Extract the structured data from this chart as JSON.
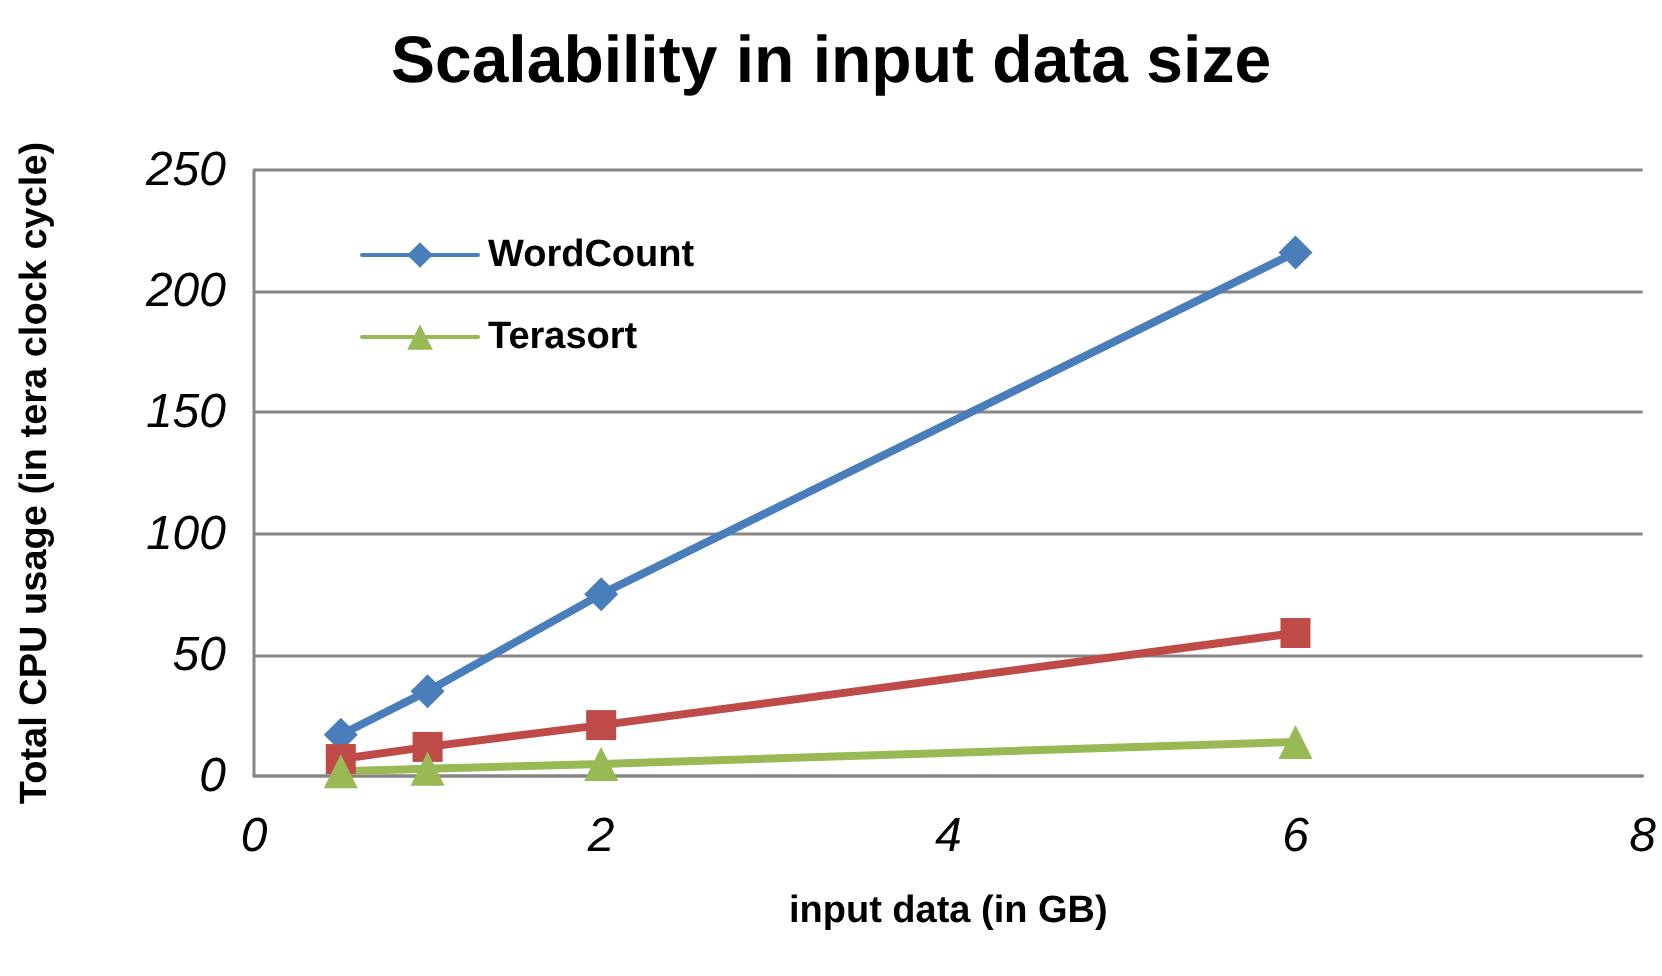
{
  "chart_data": {
    "type": "line",
    "title": "Scalability in input data size",
    "xlabel": "input data (in GB)",
    "ylabel": "Total CPU usage (in tera clock cycle)",
    "x": [
      0.5,
      1,
      2,
      6
    ],
    "series": [
      {
        "name": "WordCount",
        "color": "#4a7ebb",
        "marker": "diamond",
        "values": [
          17,
          35,
          75,
          216
        ]
      },
      {
        "color": "#be4b48",
        "marker": "square",
        "values": [
          7,
          12,
          21,
          59
        ]
      },
      {
        "name": "Terasort",
        "color": "#98b954",
        "marker": "triangle",
        "values": [
          2,
          3,
          5,
          14
        ]
      }
    ],
    "xlim": [
      0,
      8
    ],
    "xticks": [
      0,
      2,
      4,
      6,
      8
    ],
    "ylim": [
      0,
      250
    ],
    "yticks": [
      0,
      50,
      100,
      150,
      200,
      250
    ],
    "grid": "y",
    "legend": "top left",
    "line_style": "solid"
  }
}
